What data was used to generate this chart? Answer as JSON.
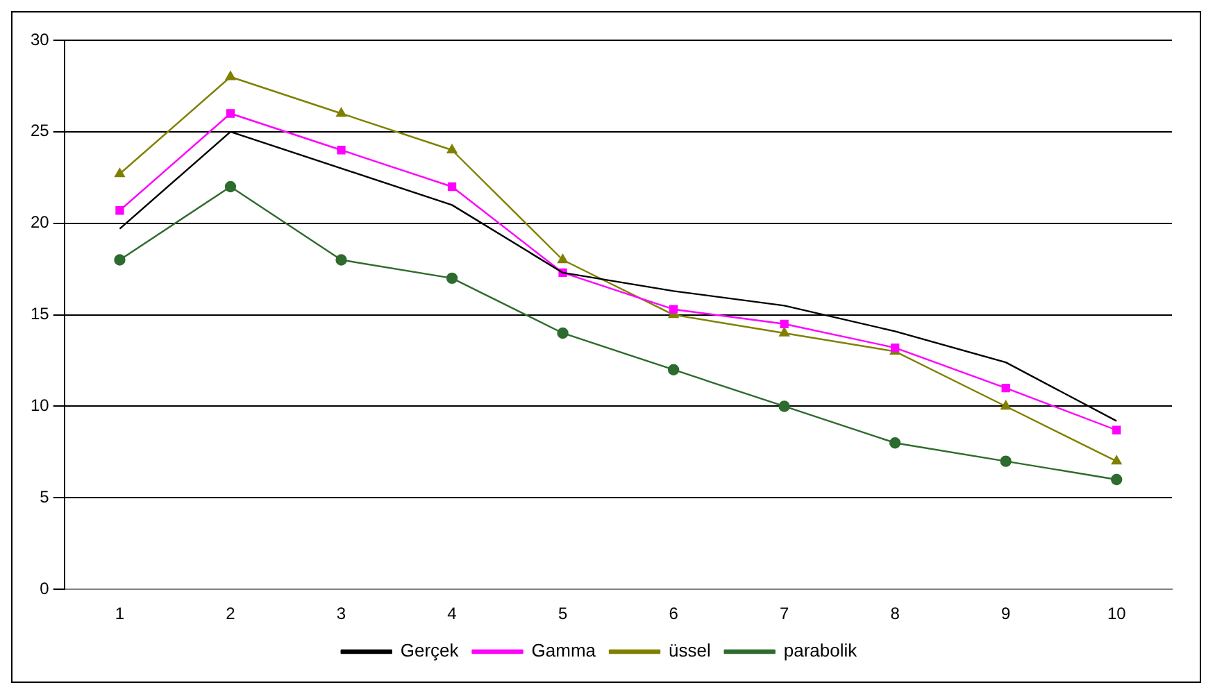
{
  "chart_data": {
    "type": "line",
    "categories": [
      "1",
      "2",
      "3",
      "4",
      "5",
      "6",
      "7",
      "8",
      "9",
      "10"
    ],
    "ylim": [
      0,
      30
    ],
    "yticks": [
      0,
      5,
      10,
      15,
      20,
      25,
      30
    ],
    "grid": "y",
    "legend": "bottom",
    "series": [
      {
        "name": "Gerçek",
        "color": "#000000",
        "marker": "none",
        "values": [
          19.7,
          25,
          23,
          21,
          17.3,
          16.3,
          15.5,
          14.1,
          12.4,
          9.2
        ]
      },
      {
        "name": "Gamma",
        "color": "#ff00ff",
        "marker": "square",
        "values": [
          20.7,
          26,
          24,
          22,
          17.3,
          15.3,
          14.5,
          13.2,
          11,
          8.7
        ]
      },
      {
        "name": "üssel",
        "color": "#808000",
        "marker": "triangle",
        "values": [
          22.7,
          28,
          26,
          24,
          18,
          15,
          14,
          13,
          10,
          7
        ]
      },
      {
        "name": "parabolik",
        "color": "#2e6b2e",
        "marker": "circle",
        "values": [
          18,
          22,
          18,
          17,
          14,
          12,
          10,
          8,
          7,
          6
        ]
      }
    ]
  }
}
